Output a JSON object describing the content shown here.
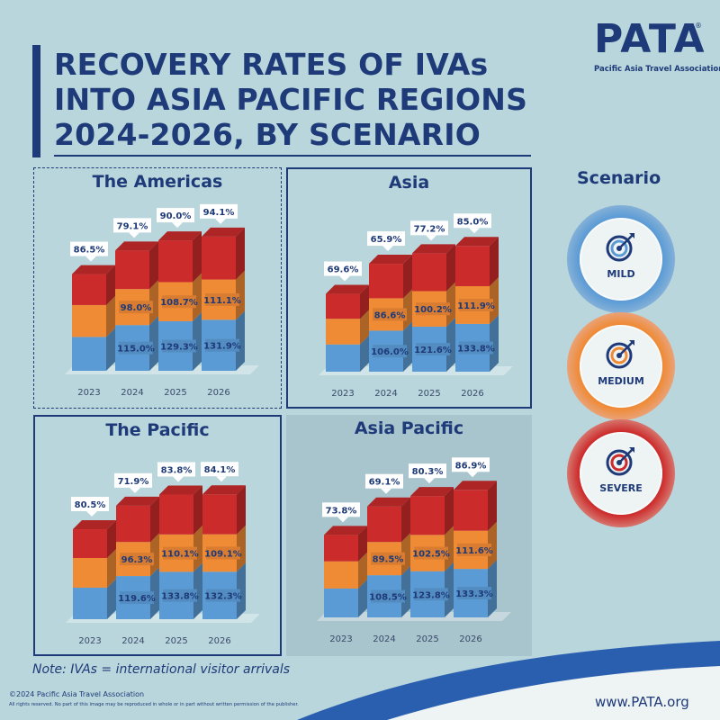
{
  "title": {
    "line1": "RECOVERY RATES OF IVAs",
    "line2": "INTO ASIA PACIFIC REGIONS",
    "line3": "2024-2026, BY SCENARIO"
  },
  "logo": {
    "word": "PATA",
    "reg": "®",
    "sub": "Pacific Asia Travel Association"
  },
  "colors": {
    "navy": "#1e3a78",
    "mild": "#5b9bd5",
    "medium": "#ef8a35",
    "severe": "#cc2b2b"
  },
  "legend": {
    "title": "Scenario",
    "items": [
      {
        "label": "MILD",
        "color": "#5b9bd5",
        "icon": "target-arrow-icon"
      },
      {
        "label": "MEDIUM",
        "color": "#ef8a35",
        "icon": "target-arrow-icon"
      },
      {
        "label": "SEVERE",
        "color": "#cc2b2b",
        "icon": "target-arrow-icon"
      }
    ]
  },
  "chart_data": [
    {
      "type": "bar",
      "title": "The Americas",
      "categories": [
        "2023",
        "2024",
        "2025",
        "2026"
      ],
      "series": [
        {
          "name": "MILD",
          "values": [
            null,
            115.0,
            129.3,
            131.9
          ],
          "labels": [
            "",
            "115.0%",
            "129.3%",
            "131.9%"
          ]
        },
        {
          "name": "MEDIUM",
          "values": [
            null,
            98.0,
            108.7,
            111.1
          ],
          "labels": [
            "",
            "98.0%",
            "108.7%",
            "111.1%"
          ]
        },
        {
          "name": "SEVERE",
          "values": [
            86.5,
            79.1,
            90.0,
            94.1
          ],
          "labels": [
            "86.5%",
            "79.1%",
            "90.0%",
            "94.1%"
          ]
        }
      ]
    },
    {
      "type": "bar",
      "title": "Asia",
      "categories": [
        "2023",
        "2024",
        "2025",
        "2026"
      ],
      "series": [
        {
          "name": "MILD",
          "values": [
            null,
            106.0,
            121.6,
            133.8
          ],
          "labels": [
            "",
            "106.0%",
            "121.6%",
            "133.8%"
          ]
        },
        {
          "name": "MEDIUM",
          "values": [
            null,
            86.6,
            100.2,
            111.9
          ],
          "labels": [
            "",
            "86.6%",
            "100.2%",
            "111.9%"
          ]
        },
        {
          "name": "SEVERE",
          "values": [
            69.6,
            65.9,
            77.2,
            85.0
          ],
          "labels": [
            "69.6%",
            "65.9%",
            "77.2%",
            "85.0%"
          ]
        }
      ]
    },
    {
      "type": "bar",
      "title": "The Pacific",
      "categories": [
        "2023",
        "2024",
        "2025",
        "2026"
      ],
      "series": [
        {
          "name": "MILD",
          "values": [
            null,
            119.6,
            133.8,
            132.3
          ],
          "labels": [
            "",
            "119.6%",
            "133.8%",
            "132.3%"
          ]
        },
        {
          "name": "MEDIUM",
          "values": [
            null,
            96.3,
            110.1,
            109.1
          ],
          "labels": [
            "",
            "96.3%",
            "110.1%",
            "109.1%"
          ]
        },
        {
          "name": "SEVERE",
          "values": [
            80.5,
            71.9,
            83.8,
            84.1
          ],
          "labels": [
            "80.5%",
            "71.9%",
            "83.8%",
            "84.1%"
          ]
        }
      ]
    },
    {
      "type": "bar",
      "title": "Asia Pacific",
      "categories": [
        "2023",
        "2024",
        "2025",
        "2026"
      ],
      "series": [
        {
          "name": "MILD",
          "values": [
            null,
            108.5,
            123.8,
            133.3
          ],
          "labels": [
            "",
            "108.5%",
            "123.8%",
            "133.3%"
          ]
        },
        {
          "name": "MEDIUM",
          "values": [
            null,
            89.5,
            102.5,
            111.6
          ],
          "labels": [
            "",
            "89.5%",
            "102.5%",
            "111.6%"
          ]
        },
        {
          "name": "SEVERE",
          "values": [
            73.8,
            69.1,
            80.3,
            86.9
          ],
          "labels": [
            "73.8%",
            "69.1%",
            "80.3%",
            "86.9%"
          ]
        }
      ]
    }
  ],
  "footer": {
    "note": "Note: IVAs = international visitor arrivals",
    "copyright": "©2024 Pacific Asia Travel Association",
    "rights": "All rights reserved. No part of this image may be reproduced in whole or in part without written permission of the publisher.",
    "url": "www.PATA.org"
  }
}
